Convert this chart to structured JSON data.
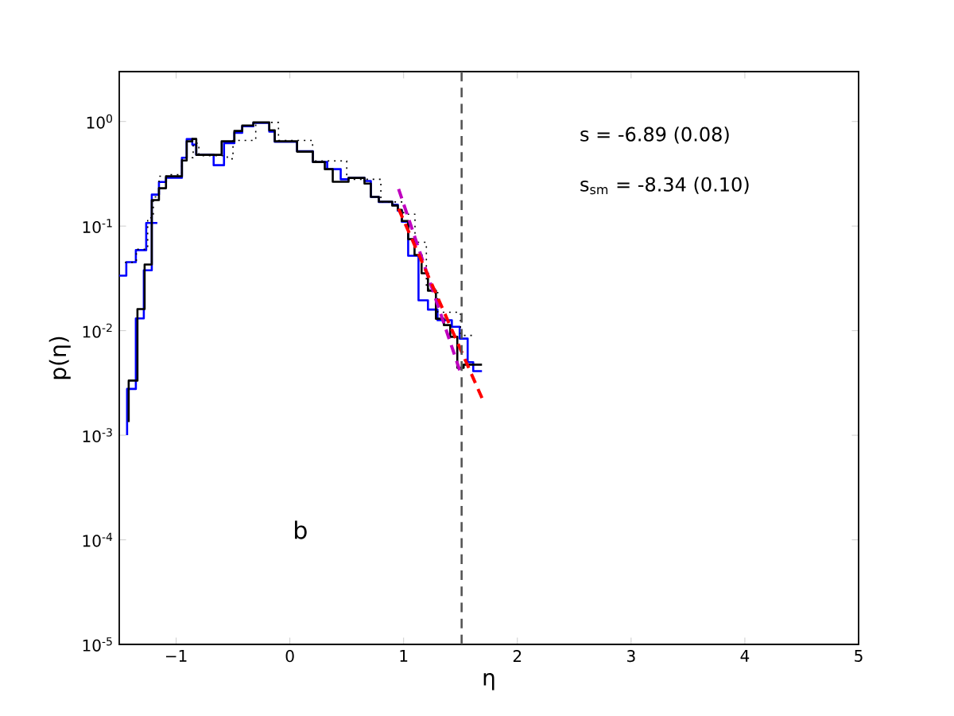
{
  "chart_data": {
    "type": "step",
    "xlabel": "η",
    "ylabel": "p(η)",
    "xlim": [
      -1.5,
      5
    ],
    "ylim": [
      1e-05,
      3
    ],
    "log": "y",
    "grid": false,
    "xticks": [
      {
        "value": -1,
        "label": "−1"
      },
      0,
      1,
      2,
      3,
      4,
      5
    ],
    "yticks": [
      {
        "value": 1e-05,
        "label": "10$^{-5}$"
      },
      {
        "value": 0.0001,
        "label": "10$^{-4}$"
      },
      {
        "value": 0.001,
        "label": "10$^{-3}$"
      },
      {
        "value": 0.01,
        "label": "10$^{-2}$"
      },
      {
        "value": 0.1,
        "label": "10$^{-1}$"
      },
      {
        "value": 1,
        "label": "10$^{0}$"
      }
    ],
    "series": [
      {
        "color": "#0000ff",
        "line_style": "solid",
        "x": [
          -1.5,
          -1.438,
          -1.354,
          -1.263,
          -1.214,
          -1.151,
          -1.089,
          -0.949,
          -0.907,
          -0.858,
          -0.823,
          -0.67,
          -0.579,
          -0.488,
          -0.419,
          -0.321,
          -0.181,
          -0.133,
          0.063,
          0.202,
          0.328,
          0.447,
          0.516,
          0.656,
          0.712,
          0.782,
          0.9,
          0.949,
          0.984,
          1.04,
          1.131,
          1.214,
          1.298,
          1.424,
          1.493,
          1.563,
          1.612,
          1.689
        ],
        "values": [
          0.0336,
          0.0336,
          0.0452,
          0.0589,
          0.107,
          0.2,
          0.264,
          0.29,
          0.45,
          0.68,
          0.6,
          0.48,
          0.382,
          0.62,
          0.78,
          0.9,
          0.97,
          0.8,
          0.64,
          0.52,
          0.41,
          0.35,
          0.28,
          0.289,
          0.27,
          0.19,
          0.17,
          0.16,
          0.14,
          0.11,
          0.052,
          0.0195,
          0.0159,
          0.0126,
          0.0109,
          0.0084,
          0.005,
          0.0041
        ]
      },
      {
        "color": "#0000ff",
        "line_style": "solid",
        "x": [
          -1.431,
          -1.354,
          -1.284,
          -1.214,
          -1.165
        ],
        "values": [
          0.001,
          0.00277,
          0.0131,
          0.0378,
          0.107
        ]
      },
      {
        "color": "#000000",
        "line_style": "solid",
        "x": [
          -1.417,
          -1.34,
          -1.277,
          -1.214,
          -1.151,
          -1.089,
          -0.949,
          -0.907,
          -0.858,
          -0.823,
          -0.6,
          -0.488,
          -0.419,
          -0.321,
          -0.181,
          -0.133,
          0.063,
          0.202,
          0.307,
          0.377,
          0.516,
          0.656,
          0.712,
          0.782,
          0.9,
          0.949,
          0.984,
          1.04,
          1.096,
          1.158,
          1.214,
          1.284,
          1.354,
          1.41,
          1.472,
          1.528,
          1.689
        ],
        "values": [
          0.00134,
          0.00333,
          0.0161,
          0.0429,
          0.177,
          0.23,
          0.299,
          0.424,
          0.646,
          0.681,
          0.48,
          0.646,
          0.811,
          0.916,
          0.98,
          0.825,
          0.646,
          0.515,
          0.41,
          0.35,
          0.265,
          0.289,
          0.255,
          0.19,
          0.171,
          0.157,
          0.143,
          0.112,
          0.075,
          0.0529,
          0.0354,
          0.0241,
          0.013,
          0.0113,
          0.00873,
          0.00441,
          0.00473
        ]
      },
      {
        "color": "#000000",
        "line_style": "dotted",
        "x": [
          -1.45,
          -1.35,
          -1.25,
          -1.2,
          -1.15,
          -1.05,
          -0.95,
          -0.85,
          -0.8,
          -0.55,
          -0.5,
          -0.3,
          -0.1,
          0.2,
          0.5,
          0.8,
          1.0,
          1.1,
          1.2,
          1.3,
          1.5,
          1.6
        ],
        "values": [
          0.045,
          0.045,
          0.06,
          0.12,
          0.19,
          0.3,
          0.31,
          0.45,
          0.62,
          0.47,
          0.44,
          0.66,
          0.98,
          0.66,
          0.42,
          0.28,
          0.17,
          0.13,
          0.07,
          0.025,
          0.015,
          0.009
        ]
      },
      {
        "type": "line",
        "color": "#bf00bf",
        "line_style": "dashed",
        "x": [
          0.956,
          1.493
        ],
        "values": [
          0.226,
          0.00419
        ]
      },
      {
        "type": "line",
        "color": "#ff0000",
        "line_style": "dashed",
        "x": [
          0.956,
          1.689
        ],
        "values": [
          0.146,
          0.00227
        ]
      }
    ],
    "ref_lines": [
      {
        "axis": "x",
        "value": 1.51,
        "color": "#555555",
        "line_style": "dashed"
      }
    ],
    "annotations": [
      "s = -6.89 (0.08)",
      "s$_{sm}$ = -8.34 (0.10)",
      "b"
    ]
  }
}
